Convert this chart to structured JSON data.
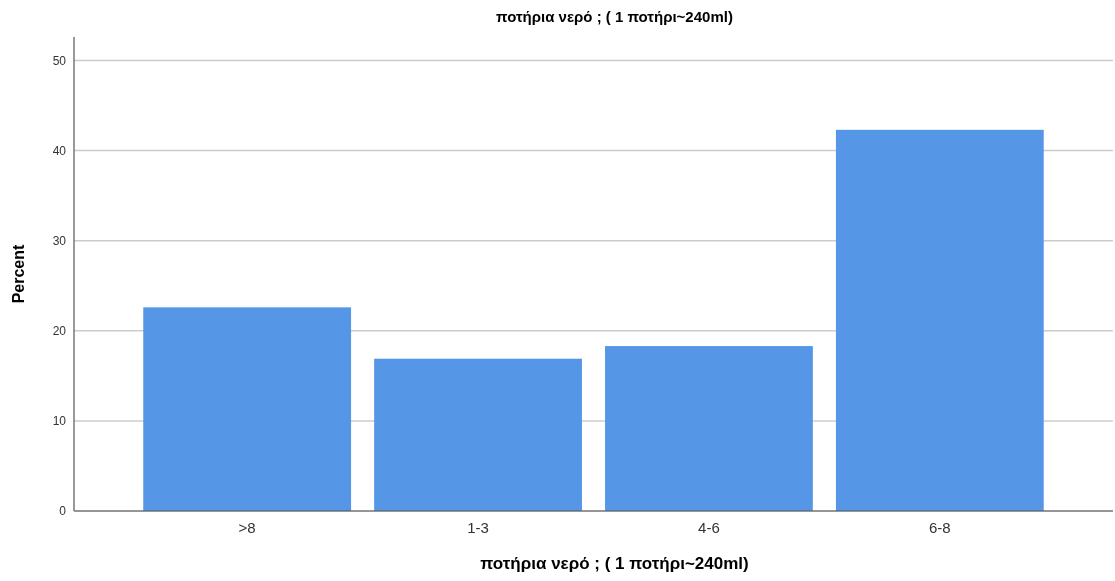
{
  "chart_data": {
    "type": "bar",
    "title": "ποτήρια νερό ; ( 1 ποτήρι~240ml)",
    "xlabel": "ποτήρια νερό ; ( 1 ποτήρι~240ml)",
    "ylabel": "Percent",
    "categories": [
      ">8",
      "1-3",
      "4-6",
      "6-8"
    ],
    "values": [
      22.6,
      16.9,
      18.3,
      42.3
    ],
    "color": "#5596e6",
    "ylim": [
      0,
      52.6
    ],
    "yticks": [
      0,
      10,
      20,
      30,
      40,
      50
    ],
    "grid": "y"
  }
}
